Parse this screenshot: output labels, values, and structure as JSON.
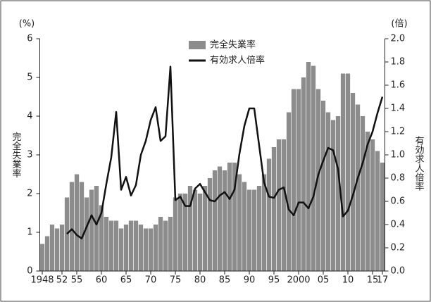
{
  "chart_data": {
    "type": "bar-line",
    "y_unit": "(%)",
    "y2_unit": "(倍)",
    "y_label": "完全失業率",
    "y2_label": "有効求人倍率",
    "categories": [
      "1948",
      null,
      null,
      null,
      "52",
      null,
      null,
      "55",
      null,
      null,
      null,
      null,
      "60",
      null,
      null,
      null,
      null,
      "65",
      null,
      null,
      null,
      null,
      "70",
      null,
      null,
      null,
      null,
      "75",
      null,
      null,
      null,
      null,
      "80",
      null,
      null,
      null,
      null,
      "85",
      null,
      null,
      null,
      null,
      "90",
      null,
      null,
      null,
      null,
      "95",
      null,
      null,
      null,
      null,
      "2000",
      null,
      null,
      null,
      null,
      "05",
      null,
      null,
      null,
      null,
      "10",
      null,
      null,
      null,
      null,
      "15",
      null,
      "17"
    ],
    "series": [
      {
        "name": "完全失業率",
        "color": "#8c8c8c",
        "type": "bar",
        "values": [
          0.7,
          0.9,
          1.2,
          1.1,
          1.2,
          1.9,
          2.3,
          2.5,
          2.3,
          1.9,
          2.1,
          2.2,
          1.7,
          1.4,
          1.3,
          1.3,
          1.1,
          1.2,
          1.3,
          1.3,
          1.2,
          1.1,
          1.1,
          1.2,
          1.4,
          1.3,
          1.4,
          1.9,
          2.0,
          2.0,
          2.2,
          2.1,
          2.0,
          2.2,
          2.4,
          2.6,
          2.7,
          2.6,
          2.8,
          2.8,
          2.5,
          2.3,
          2.1,
          2.1,
          2.2,
          2.5,
          2.9,
          3.2,
          3.4,
          3.4,
          4.1,
          4.7,
          4.7,
          5.0,
          5.4,
          5.3,
          4.7,
          4.4,
          4.1,
          3.9,
          4.0,
          5.1,
          5.1,
          4.6,
          4.3,
          4.0,
          3.6,
          3.4,
          3.1,
          2.8
        ]
      },
      {
        "name": "有効求人倍率",
        "color": "#111111",
        "type": "line",
        "axis": "y2",
        "values": [
          null,
          null,
          null,
          null,
          null,
          0.32,
          0.36,
          0.31,
          0.28,
          0.38,
          0.48,
          0.4,
          0.5,
          0.75,
          0.98,
          1.37,
          0.7,
          0.81,
          0.65,
          0.74,
          1.0,
          1.12,
          1.3,
          1.41,
          1.12,
          1.16,
          1.76,
          0.61,
          0.64,
          0.56,
          0.56,
          0.71,
          0.75,
          0.68,
          0.61,
          0.6,
          0.65,
          0.68,
          0.62,
          0.7,
          1.01,
          1.25,
          1.4,
          1.4,
          1.08,
          0.76,
          0.64,
          0.63,
          0.7,
          0.72,
          0.53,
          0.48,
          0.59,
          0.59,
          0.54,
          0.64,
          0.83,
          0.95,
          1.06,
          1.04,
          0.88,
          0.47,
          0.52,
          0.65,
          0.8,
          0.93,
          1.09,
          1.2,
          1.36,
          1.5
        ]
      }
    ],
    "ylim": [
      0,
      6
    ],
    "yticks": [
      0,
      1,
      2,
      3,
      4,
      5,
      6
    ],
    "y2lim": [
      0,
      2
    ],
    "y2ticks": [
      {
        "value": 0,
        "label": "0.0"
      },
      {
        "value": 0.2,
        "label": "0.2"
      },
      {
        "value": 0.4,
        "label": "0.4"
      },
      {
        "value": 0.6,
        "label": "0.6"
      },
      {
        "value": 0.8,
        "label": "0.8"
      },
      {
        "value": 1,
        "label": "1.0"
      },
      {
        "value": 1.2,
        "label": "1.2"
      },
      {
        "value": 1.4,
        "label": "1.4"
      },
      {
        "value": 1.6,
        "label": "1.6"
      },
      {
        "value": 1.8,
        "label": "1.8"
      },
      {
        "value": 2,
        "label": "2.0"
      }
    ]
  }
}
